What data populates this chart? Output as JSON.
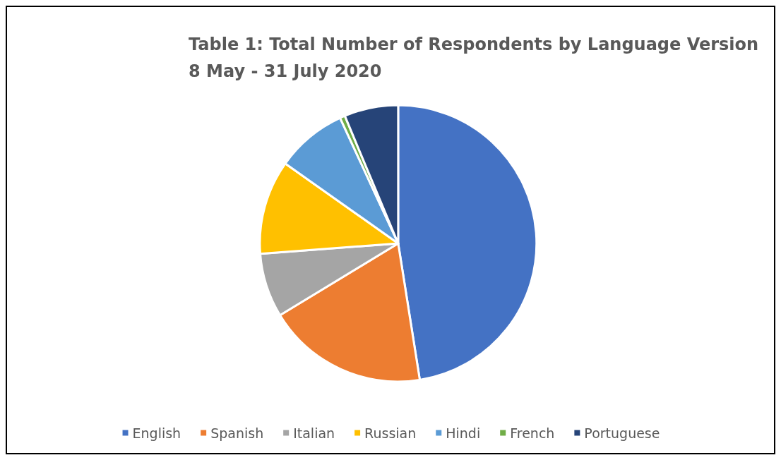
{
  "chart_data": {
    "type": "pie",
    "title": "Table 1: Total Number of Respondents by Language Version",
    "subtitle": "8 May - 31 July 2020",
    "categories": [
      "English",
      "Spanish",
      "Italian",
      "Russian",
      "Hindi",
      "French",
      "Portuguese"
    ],
    "values": [
      47.5,
      18.8,
      7.5,
      11,
      8.3,
      0.6,
      6.3
    ],
    "colors": [
      "#4472c4",
      "#ed7d31",
      "#a5a5a5",
      "#ffc000",
      "#5b9bd5",
      "#70ad47",
      "#264478"
    ],
    "legend": "bottom"
  }
}
